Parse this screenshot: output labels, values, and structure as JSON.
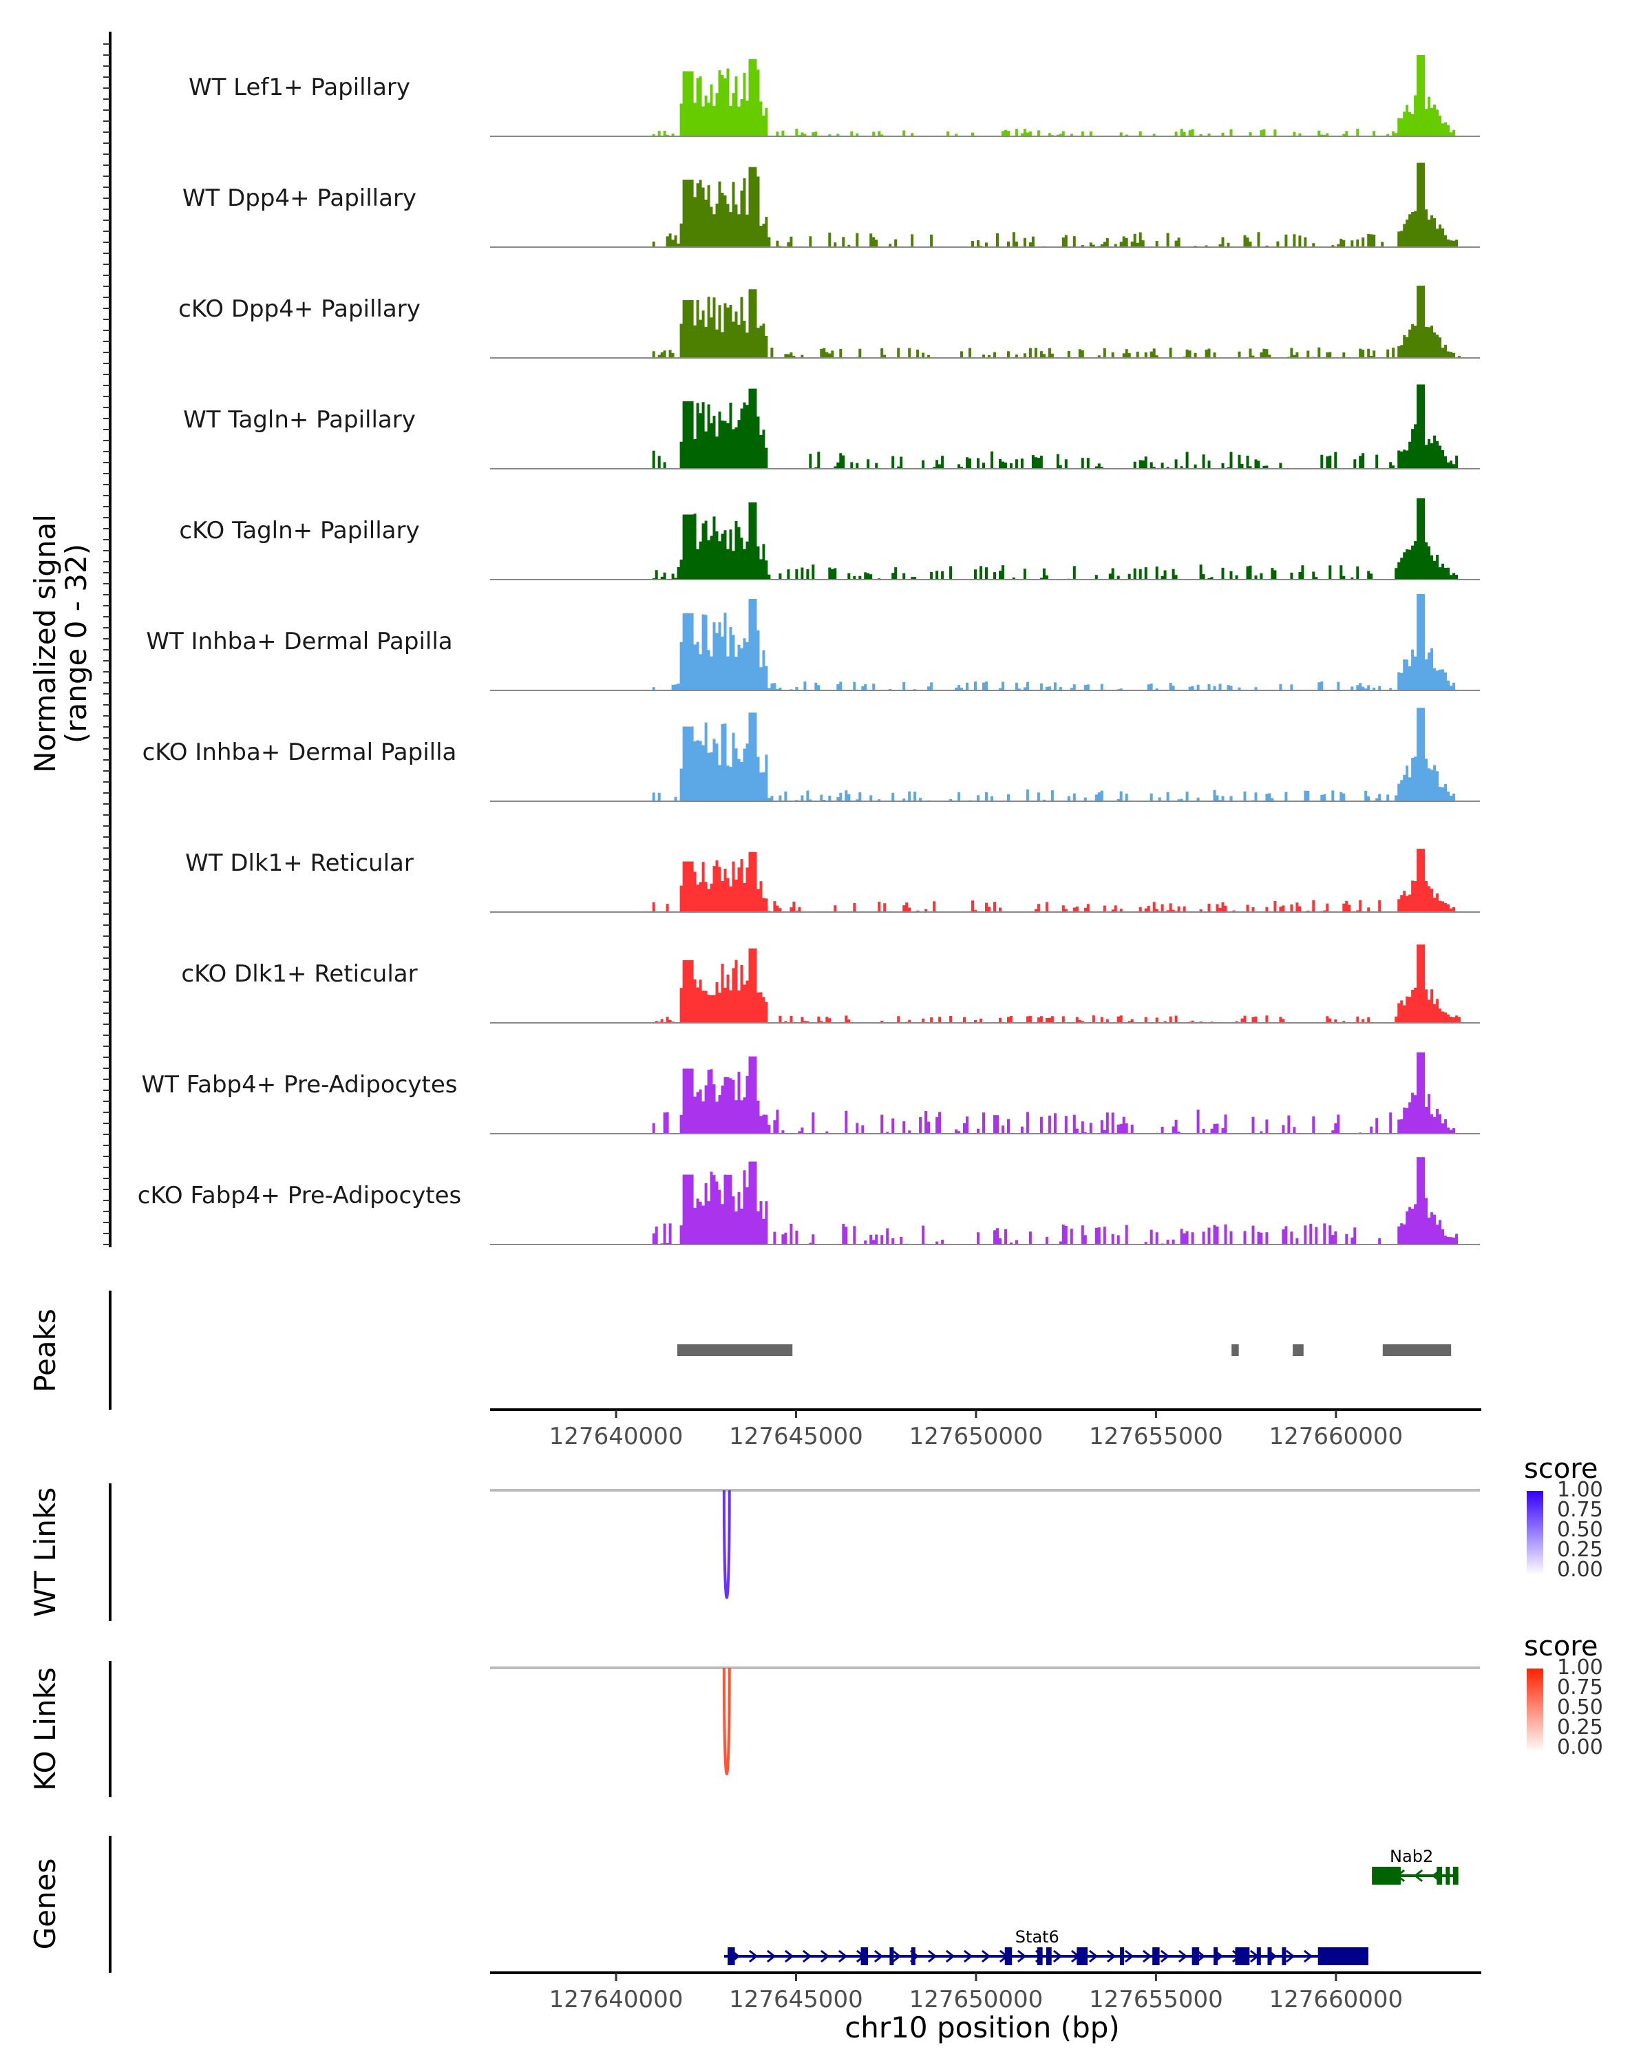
{
  "chart_data": {
    "type": "area",
    "title": "",
    "chromosome": "chr10",
    "xlim": [
      127636500,
      127664000
    ],
    "xlabel": "chr10 position (bp)",
    "x_ticks": [
      127640000,
      127645000,
      127650000,
      127655000,
      127660000
    ],
    "x_tick_labels": [
      "127640000",
      "127645000",
      "127650000",
      "127655000",
      "127660000"
    ],
    "signal_ylabel_line1": "Normalized signal",
    "signal_ylabel_line2": "(range 0 - 32)",
    "ylim": [
      0,
      32
    ],
    "coverage_regions": [
      {
        "start": 127641800,
        "end": 127644200,
        "kind": "major"
      },
      {
        "start": 127661600,
        "end": 127663300,
        "kind": "major"
      }
    ],
    "series": [
      {
        "name": "WT Lef1+ Papillary",
        "color": "#66cc00",
        "peak": 27,
        "noise": 2.5,
        "seed": 11
      },
      {
        "name": "WT Dpp4+ Papillary",
        "color": "#4d8000",
        "peak": 28,
        "noise": 5,
        "seed": 23
      },
      {
        "name": "cKO Dpp4+ Papillary",
        "color": "#4d8000",
        "peak": 24,
        "noise": 3.5,
        "seed": 37
      },
      {
        "name": "WT Tagln+ Papillary",
        "color": "#006400",
        "peak": 28,
        "noise": 6,
        "seed": 41
      },
      {
        "name": "cKO Tagln+ Papillary",
        "color": "#006400",
        "peak": 27,
        "noise": 5,
        "seed": 53
      },
      {
        "name": "WT Inhba+ Dermal Papilla",
        "color": "#5ca8e6",
        "peak": 32,
        "noise": 3,
        "seed": 67
      },
      {
        "name": "cKO Inhba+ Dermal Papilla",
        "color": "#5ca8e6",
        "peak": 31,
        "noise": 4,
        "seed": 71
      },
      {
        "name": "WT Dlk1+ Reticular",
        "color": "#ff3333",
        "peak": 21,
        "noise": 4,
        "seed": 83
      },
      {
        "name": "cKO Dlk1+ Reticular",
        "color": "#ff3333",
        "peak": 26,
        "noise": 2.5,
        "seed": 97
      },
      {
        "name": "WT Fabp4+ Pre-Adipocytes",
        "color": "#aa33ee",
        "peak": 27,
        "noise": 8,
        "seed": 101
      },
      {
        "name": "cKO Fabp4+ Pre-Adipocytes",
        "color": "#aa33ee",
        "peak": 29,
        "noise": 7,
        "seed": 113
      }
    ],
    "peaks": {
      "label": "Peaks",
      "color": "#666666",
      "intervals": [
        [
          127641700,
          127644900
        ],
        [
          127657100,
          127657300
        ],
        [
          127658800,
          127659100
        ],
        [
          127661300,
          127663200
        ]
      ]
    },
    "links": [
      {
        "label": "WT Links",
        "color": "#6633ff",
        "start": 127643000,
        "end": 127643150,
        "score": 1.0,
        "legend_title": "score",
        "legend_ticks": [
          "1.00",
          "0.75",
          "0.50",
          "0.25",
          "0.00"
        ],
        "gradient": [
          "#ffffff",
          "#3300ff"
        ]
      },
      {
        "label": "KO Links",
        "color": "#ff5533",
        "start": 127643000,
        "end": 127643150,
        "score": 1.0,
        "legend_title": "score",
        "legend_ticks": [
          "1.00",
          "0.75",
          "0.50",
          "0.25",
          "0.00"
        ],
        "gradient": [
          "#ffffff",
          "#ff2200"
        ]
      }
    ],
    "genes": {
      "label": "Genes",
      "items": [
        {
          "name": "Nab2",
          "strand": "-",
          "start": 127661000,
          "end": 127663400,
          "color": "#006400",
          "exons": [
            [
              127661000,
              127661800
            ],
            [
              127662800,
              127662950
            ],
            [
              127663050,
              127663150
            ],
            [
              127663250,
              127663400
            ]
          ]
        },
        {
          "name": "Stat6",
          "strand": "+",
          "start": 127643000,
          "end": 127660900,
          "color": "#00008b",
          "exons": [
            [
              127643100,
              127643300
            ],
            [
              127646800,
              127647000
            ],
            [
              127647600,
              127647700
            ],
            [
              127648200,
              127648300
            ],
            [
              127650800,
              127651000
            ],
            [
              127651700,
              127651850
            ],
            [
              127651950,
              127652100
            ],
            [
              127652800,
              127653100
            ],
            [
              127654000,
              127654100
            ],
            [
              127654900,
              127655100
            ],
            [
              127656000,
              127656200
            ],
            [
              127656600,
              127656700
            ],
            [
              127657200,
              127657600
            ],
            [
              127657800,
              127657900
            ],
            [
              127658100,
              127658200
            ],
            [
              127658500,
              127658600
            ],
            [
              127659500,
              127660900
            ]
          ]
        }
      ]
    }
  }
}
